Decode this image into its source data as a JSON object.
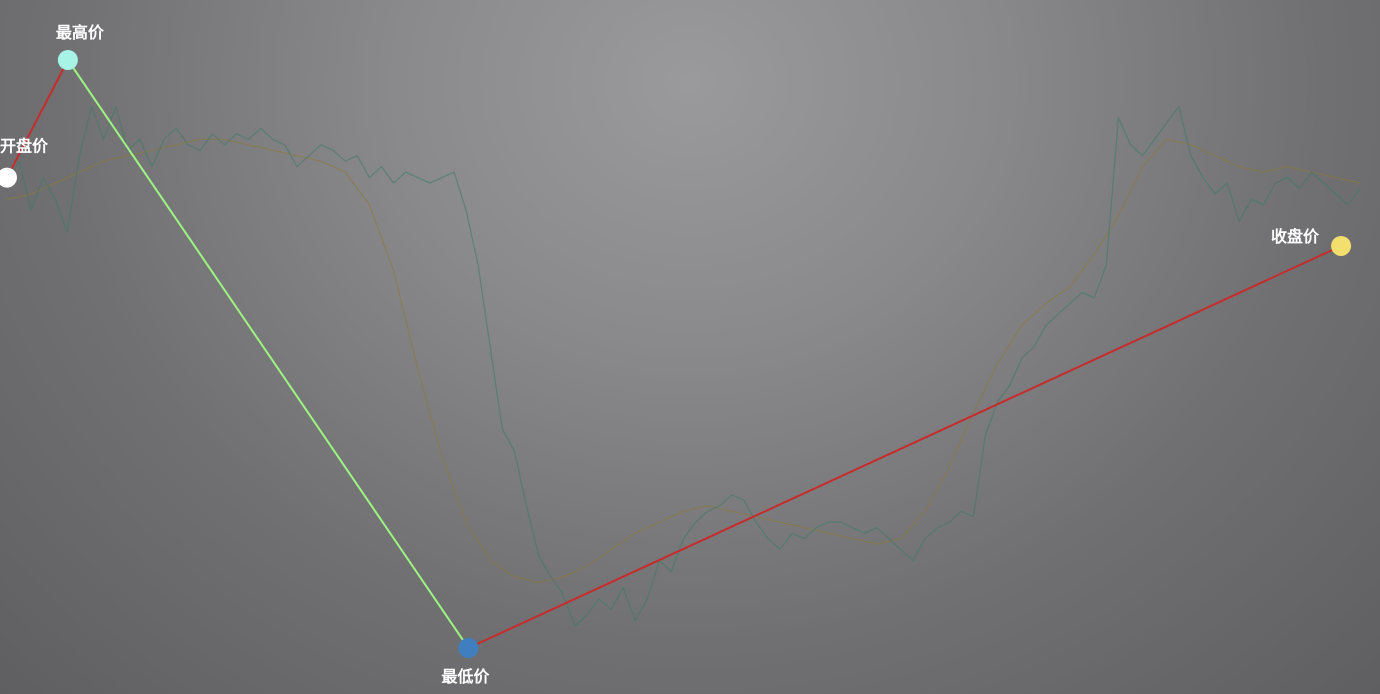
{
  "chart_data": {
    "type": "line",
    "title": "",
    "xlabel": "",
    "ylabel": "",
    "grid": false,
    "legend": "none",
    "price_series": {
      "color": "#3d7a66",
      "values": [
        1.7,
        1.78,
        1.6,
        1.72,
        1.64,
        1.52,
        1.8,
        1.98,
        1.86,
        1.98,
        1.82,
        1.86,
        1.76,
        1.86,
        1.9,
        1.84,
        1.82,
        1.88,
        1.84,
        1.88,
        1.86,
        1.9,
        1.86,
        1.84,
        1.76,
        1.8,
        1.84,
        1.82,
        1.78,
        1.8,
        1.72,
        1.76,
        1.7,
        1.74,
        1.72,
        1.7,
        1.72,
        1.74,
        1.6,
        1.4,
        1.1,
        0.8,
        0.72,
        0.52,
        0.34,
        0.26,
        0.2,
        0.08,
        0.12,
        0.18,
        0.14,
        0.22,
        0.1,
        0.18,
        0.32,
        0.28,
        0.4,
        0.46,
        0.5,
        0.52,
        0.56,
        0.54,
        0.46,
        0.4,
        0.36,
        0.42,
        0.4,
        0.44,
        0.46,
        0.46,
        0.44,
        0.42,
        0.44,
        0.4,
        0.36,
        0.32,
        0.4,
        0.44,
        0.46,
        0.5,
        0.48,
        0.78,
        0.9,
        0.96,
        1.06,
        1.1,
        1.18,
        1.22,
        1.26,
        1.3,
        1.28,
        1.4,
        1.94,
        1.84,
        1.8,
        1.86,
        1.92,
        1.98,
        1.8,
        1.72,
        1.66,
        1.7,
        1.56,
        1.64,
        1.62,
        1.7,
        1.72,
        1.68,
        1.74,
        1.7,
        1.66,
        1.62,
        1.68
      ]
    },
    "moving_average": {
      "color": "#8a7a38",
      "values": [
        1.64,
        1.66,
        1.7,
        1.74,
        1.78,
        1.8,
        1.82,
        1.84,
        1.86,
        1.86,
        1.84,
        1.82,
        1.8,
        1.78,
        1.74,
        1.62,
        1.38,
        1.02,
        0.7,
        0.46,
        0.32,
        0.26,
        0.24,
        0.26,
        0.3,
        0.36,
        0.42,
        0.46,
        0.5,
        0.52,
        0.5,
        0.48,
        0.46,
        0.44,
        0.42,
        0.4,
        0.38,
        0.4,
        0.5,
        0.66,
        0.86,
        1.04,
        1.18,
        1.26,
        1.32,
        1.44,
        1.58,
        1.76,
        1.86,
        1.84,
        1.8,
        1.76,
        1.74,
        1.76,
        1.74,
        1.72,
        1.7
      ]
    },
    "open": {
      "label": "开盘价",
      "value": 1.72,
      "position": 0.0,
      "color": "#ffffff"
    },
    "high": {
      "label": "最高价",
      "value": 2.15,
      "position": 0.045,
      "color": "#a7f3e6"
    },
    "low": {
      "label": "最低价",
      "value": 0.0,
      "position": 0.341,
      "color": "#3f7fbf"
    },
    "close": {
      "label": "收盘价",
      "value": 1.47,
      "position": 0.986,
      "color": "#f3df6e"
    },
    "segments": [
      {
        "from": "open",
        "to": "high",
        "color": "#c62c2c"
      },
      {
        "from": "high",
        "to": "low",
        "color": "#9cf580"
      },
      {
        "from": "low",
        "to": "close",
        "color": "#c62c2c"
      }
    ],
    "ylim": [
      0.0,
      2.15
    ],
    "xlim": [
      0.0,
      1.0
    ]
  }
}
